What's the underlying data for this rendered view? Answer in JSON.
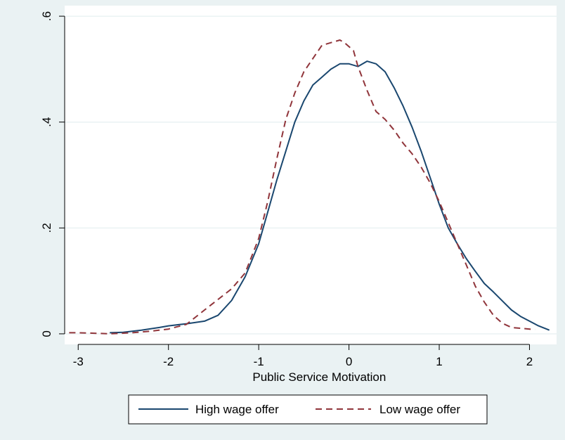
{
  "chart_data": {
    "type": "line",
    "title": "",
    "xlabel": "Public Service Motivation",
    "ylabel": "",
    "xlim": [
      -3.15,
      2.3
    ],
    "ylim": [
      -0.02,
      0.62
    ],
    "x_ticks": [
      -3,
      -2,
      -1,
      0,
      1,
      2
    ],
    "x_tick_labels": [
      "-3",
      "-2",
      "-1",
      "0",
      "1",
      "2"
    ],
    "y_ticks": [
      0,
      0.2,
      0.4,
      0.6
    ],
    "y_tick_labels": [
      "0",
      ".2",
      ".4",
      ".6"
    ],
    "grid": "horizontal",
    "legend_position": "bottom",
    "colors": {
      "outer_background": "#eaf2f3",
      "plot_background": "#ffffff",
      "high_wage": "#1a476f",
      "low_wage": "#90353b",
      "grid": "#eaf2f3"
    },
    "series": [
      {
        "name": "High wage offer",
        "style": "solid",
        "x": [
          -2.65,
          -2.5,
          -2.3,
          -2.1,
          -2.0,
          -1.8,
          -1.6,
          -1.45,
          -1.3,
          -1.15,
          -1.0,
          -0.9,
          -0.8,
          -0.7,
          -0.6,
          -0.5,
          -0.4,
          -0.3,
          -0.2,
          -0.1,
          0.0,
          0.1,
          0.2,
          0.3,
          0.4,
          0.5,
          0.6,
          0.7,
          0.8,
          0.9,
          1.0,
          1.1,
          1.2,
          1.3,
          1.4,
          1.5,
          1.6,
          1.7,
          1.8,
          1.9,
          2.0,
          2.1,
          2.22
        ],
        "values": [
          0.002,
          0.003,
          0.007,
          0.012,
          0.015,
          0.019,
          0.024,
          0.035,
          0.063,
          0.108,
          0.17,
          0.23,
          0.29,
          0.345,
          0.4,
          0.44,
          0.47,
          0.485,
          0.5,
          0.51,
          0.51,
          0.505,
          0.515,
          0.51,
          0.495,
          0.465,
          0.43,
          0.39,
          0.345,
          0.295,
          0.245,
          0.2,
          0.17,
          0.142,
          0.118,
          0.095,
          0.079,
          0.062,
          0.045,
          0.033,
          0.024,
          0.015,
          0.007
        ]
      },
      {
        "name": "Low wage offer",
        "style": "dashed",
        "x": [
          -3.1,
          -3.0,
          -2.8,
          -2.65,
          -2.4,
          -2.2,
          -2.0,
          -1.8,
          -1.6,
          -1.45,
          -1.3,
          -1.15,
          -1.0,
          -0.9,
          -0.8,
          -0.7,
          -0.6,
          -0.5,
          -0.4,
          -0.3,
          -0.2,
          -0.1,
          -0.05,
          0.05,
          0.1,
          0.2,
          0.3,
          0.4,
          0.5,
          0.6,
          0.7,
          0.8,
          0.9,
          1.0,
          1.1,
          1.2,
          1.3,
          1.4,
          1.5,
          1.6,
          1.7,
          1.8,
          2.06
        ],
        "values": [
          0.002,
          0.002,
          0.001,
          0.0,
          0.002,
          0.005,
          0.009,
          0.018,
          0.045,
          0.065,
          0.085,
          0.115,
          0.18,
          0.25,
          0.33,
          0.405,
          0.455,
          0.495,
          0.52,
          0.545,
          0.55,
          0.555,
          0.55,
          0.535,
          0.505,
          0.46,
          0.42,
          0.405,
          0.385,
          0.36,
          0.34,
          0.315,
          0.285,
          0.25,
          0.21,
          0.17,
          0.13,
          0.09,
          0.06,
          0.035,
          0.02,
          0.012,
          0.008
        ]
      }
    ]
  }
}
